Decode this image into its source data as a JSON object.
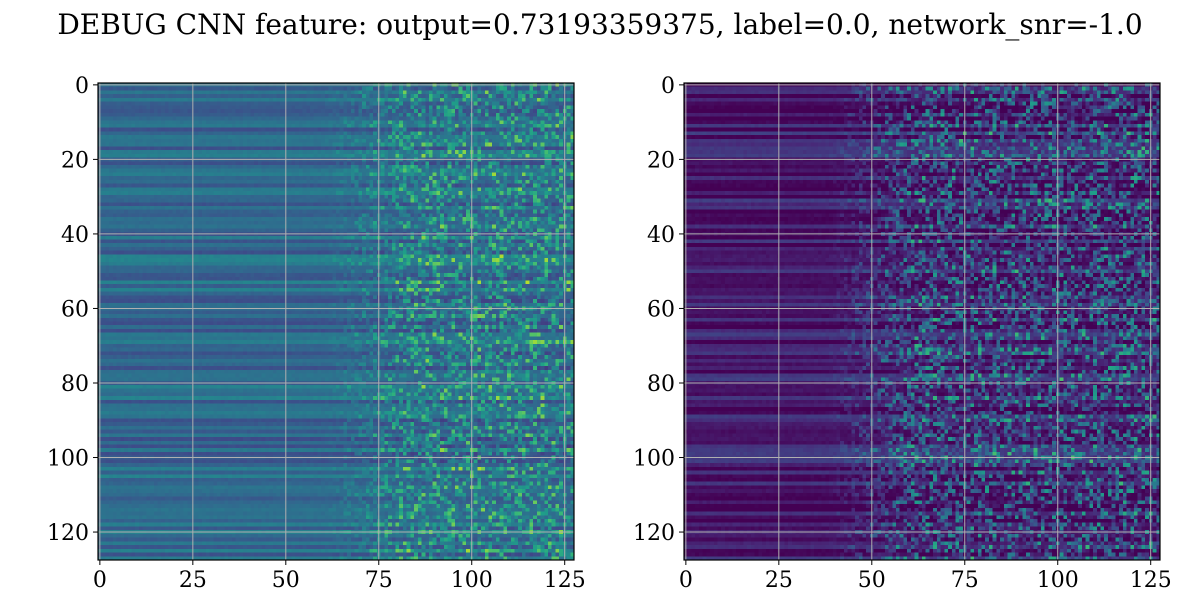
{
  "title": "DEBUG CNN feature: output=0.73193359375, label=0.0, network_snr=-1.0",
  "chart_data": [
    {
      "type": "heatmap",
      "colormap": "viridis",
      "grid": true,
      "rows": 128,
      "cols": 128,
      "xlim": [
        0,
        127
      ],
      "ylim": [
        127,
        0
      ],
      "xticks": [
        0,
        25,
        50,
        75,
        100,
        125
      ],
      "yticks": [
        0,
        20,
        40,
        60,
        80,
        100,
        120
      ],
      "xtick_labels": [
        "0",
        "25",
        "50",
        "75",
        "100",
        "125"
      ],
      "ytick_labels": [
        "0",
        "20",
        "40",
        "60",
        "80",
        "100",
        "120"
      ],
      "value_range": [
        0,
        1
      ],
      "base_level": 0.34,
      "noise_onset_col": 72,
      "noise_strength": 0.45
    },
    {
      "type": "heatmap",
      "colormap": "viridis",
      "grid": true,
      "rows": 128,
      "cols": 128,
      "xlim": [
        0,
        127
      ],
      "ylim": [
        127,
        0
      ],
      "xticks": [
        0,
        25,
        50,
        75,
        100,
        125
      ],
      "yticks": [
        0,
        20,
        40,
        60,
        80,
        100,
        120
      ],
      "xtick_labels": [
        "0",
        "25",
        "50",
        "75",
        "100",
        "125"
      ],
      "ytick_labels": [
        "0",
        "20",
        "40",
        "60",
        "80",
        "100",
        "120"
      ],
      "value_range": [
        0,
        1
      ],
      "base_level": 0.08,
      "noise_onset_col": 50,
      "noise_strength": 0.55
    }
  ]
}
